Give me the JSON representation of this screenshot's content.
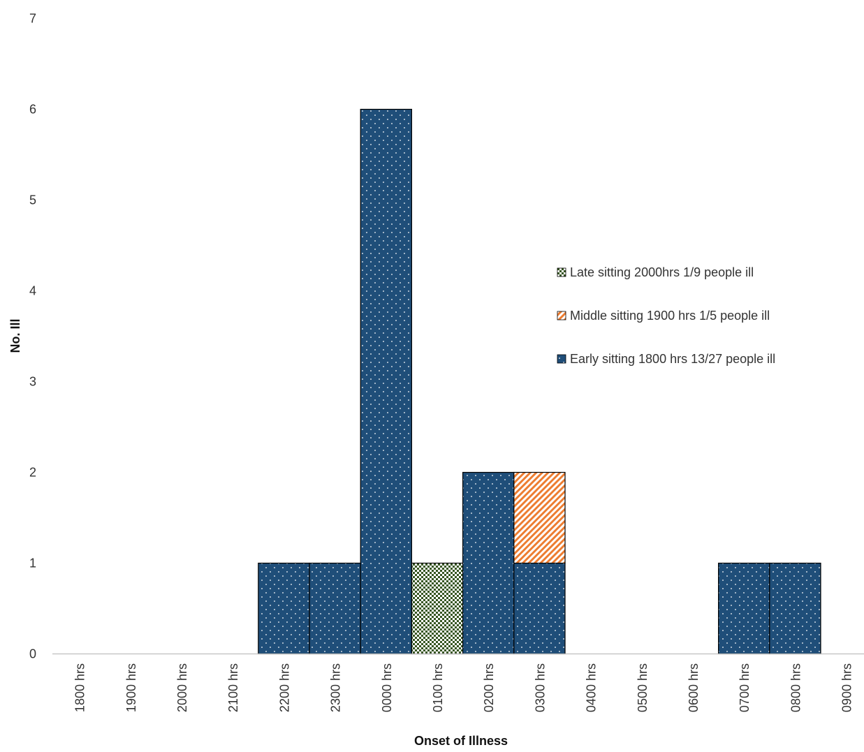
{
  "chart_data": {
    "type": "bar",
    "stacked": true,
    "xlabel": "Onset of Illness",
    "ylabel": "No. Ill",
    "ylim": [
      0,
      7
    ],
    "yticks": [
      0,
      1,
      2,
      3,
      4,
      5,
      6,
      7
    ],
    "grid": false,
    "legend_position": "right",
    "categories": [
      "1800  hrs",
      "1900  hrs",
      "2000  hrs",
      "2100  hrs",
      "2200  hrs",
      "2300  hrs",
      "0000  hrs",
      "0100  hrs",
      "0200  hrs",
      "0300  hrs",
      "0400  hrs",
      "0500  hrs",
      "0600  hrs",
      "0700  hrs",
      "0800  hrs",
      "0900  hrs"
    ],
    "series": [
      {
        "name": "Early sitting 1800 hrs 13/27 people ill",
        "color": "#1f4e79",
        "pattern": "dots",
        "values": [
          0,
          0,
          0,
          0,
          1,
          1,
          6,
          0,
          2,
          1,
          0,
          0,
          0,
          1,
          1,
          0
        ]
      },
      {
        "name": "Middle sitting 1900 hrs 1/5 people ill",
        "color": "#ed7d31",
        "pattern": "diagonal",
        "values": [
          0,
          0,
          0,
          0,
          0,
          0,
          0,
          0,
          0,
          1,
          0,
          0,
          0,
          0,
          0,
          0
        ]
      },
      {
        "name": "Late sitting 2000hrs 1/9 people ill",
        "color": "#375623",
        "pattern": "checker",
        "values": [
          0,
          0,
          0,
          0,
          0,
          0,
          0,
          1,
          0,
          0,
          0,
          0,
          0,
          0,
          0,
          0
        ]
      }
    ],
    "legend_order": [
      2,
      1,
      0
    ]
  }
}
